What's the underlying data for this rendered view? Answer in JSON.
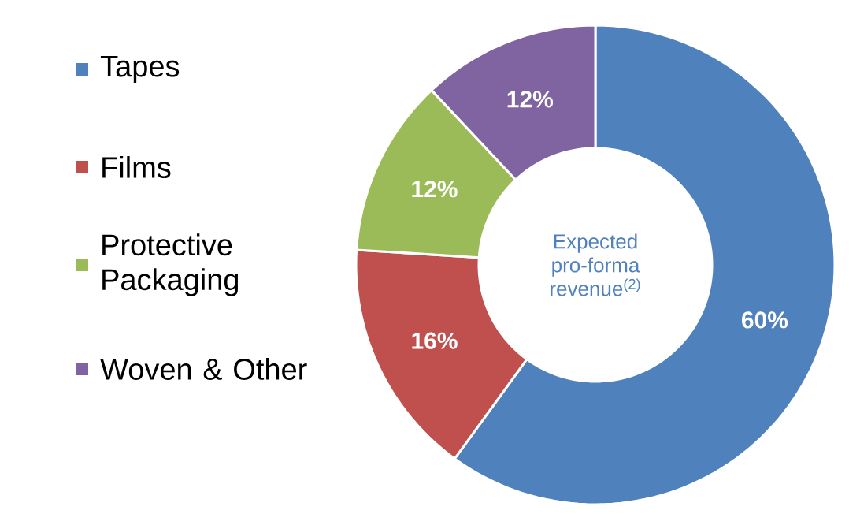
{
  "chart_data": {
    "type": "donut",
    "categories": [
      "Tapes",
      "Films",
      "Protective Packaging",
      "Woven & Other"
    ],
    "values": [
      60,
      16,
      12,
      12
    ],
    "colors": [
      "#4f81bd",
      "#c0504d",
      "#9bbb59",
      "#8064a2"
    ],
    "value_labels": [
      "60%",
      "16%",
      "12%",
      "12%"
    ],
    "annotations": [
      "Expected pro-forma revenue$^{(2)}$"
    ],
    "legend": "left"
  }
}
